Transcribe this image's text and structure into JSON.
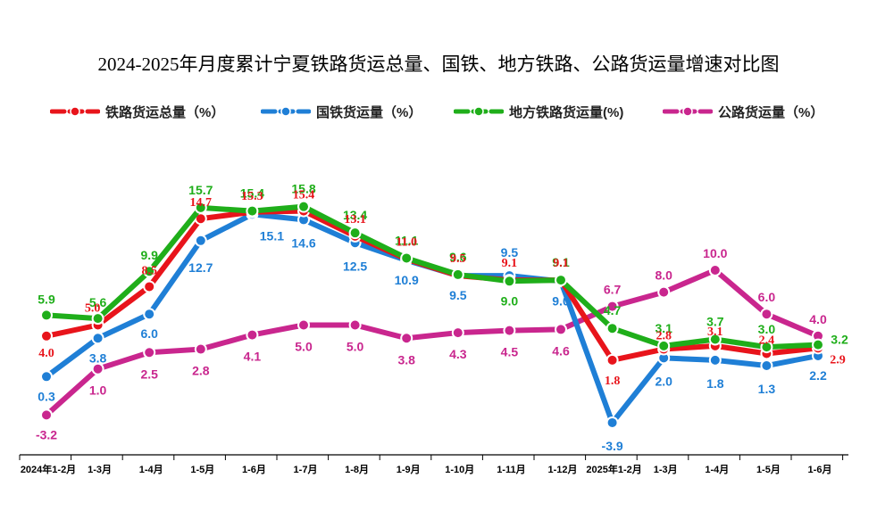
{
  "chart_data": {
    "type": "line",
    "title": "2024-2025年月度累计宁夏铁路货运总量、国铁、地方铁路、公路货运量增速对比图",
    "categories": [
      "2024年1-2月",
      "1-3月",
      "1-4月",
      "1-5月",
      "1-6月",
      "1-7月",
      "1-8月",
      "1-9月",
      "1-10月",
      "1-11月",
      "1-12月",
      "2025年1-2月",
      "1-3月",
      "1-4月",
      "1-5月",
      "1-6月"
    ],
    "ylim": [
      -5,
      17
    ],
    "grid": false,
    "legend_position": "top",
    "series": [
      {
        "name": "铁路货运总量（%）",
        "color": "#e8141b",
        "values": [
          4.0,
          5.0,
          8.5,
          14.7,
          15.3,
          15.4,
          13.1,
          11.0,
          9.5,
          9.1,
          9.1,
          1.8,
          2.8,
          3.1,
          2.4,
          2.9
        ]
      },
      {
        "name": "国铁货运量（%）",
        "color": "#1f7fd6",
        "values": [
          0.3,
          3.8,
          6.0,
          12.7,
          15.1,
          14.6,
          12.5,
          10.9,
          9.5,
          9.5,
          9.0,
          -3.9,
          2.0,
          1.8,
          1.3,
          2.2
        ]
      },
      {
        "name": "地方铁路货运量(%)",
        "color": "#1fae1a",
        "values": [
          5.9,
          5.6,
          9.9,
          15.7,
          15.4,
          15.8,
          13.4,
          11.1,
          9.6,
          9.0,
          9.1,
          4.7,
          3.1,
          3.7,
          3.0,
          3.2
        ]
      },
      {
        "name": "公路货运量（%）",
        "color": "#c9268e",
        "values": [
          -3.2,
          1.0,
          2.5,
          2.8,
          4.1,
          5.0,
          5.0,
          3.8,
          4.3,
          4.5,
          4.6,
          6.7,
          8.0,
          10.0,
          6.0,
          4.0
        ]
      }
    ]
  }
}
